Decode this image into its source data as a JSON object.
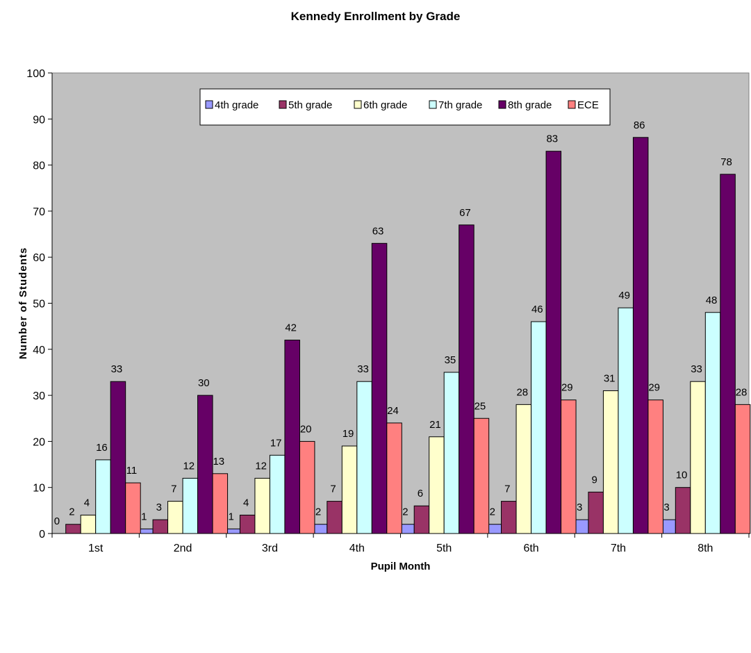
{
  "chart_data": {
    "type": "bar",
    "title": "Kennedy Enrollment by Grade",
    "xlabel": "Pupil Month",
    "ylabel": "Number of Students",
    "ylim": [
      0,
      100
    ],
    "yticks": [
      0,
      10,
      20,
      30,
      40,
      50,
      60,
      70,
      80,
      90,
      100
    ],
    "grid": false,
    "legend_position": "top-center",
    "plot_background": "#c0c0c0",
    "categories": [
      "1st",
      "2nd",
      "3rd",
      "4th",
      "5th",
      "6th",
      "7th",
      "8th"
    ],
    "series": [
      {
        "name": "4th grade",
        "color": "#9999ff",
        "values": [
          0,
          1,
          1,
          2,
          2,
          2,
          3,
          3
        ]
      },
      {
        "name": "5th grade",
        "color": "#993366",
        "values": [
          2,
          3,
          4,
          7,
          6,
          7,
          9,
          10
        ]
      },
      {
        "name": "6th grade",
        "color": "#ffffcc",
        "values": [
          4,
          7,
          12,
          19,
          21,
          28,
          31,
          33
        ]
      },
      {
        "name": "7th grade",
        "color": "#ccffff",
        "values": [
          16,
          12,
          17,
          33,
          35,
          46,
          49,
          48
        ]
      },
      {
        "name": "8th grade",
        "color": "#660066",
        "values": [
          33,
          30,
          42,
          63,
          67,
          83,
          86,
          78
        ]
      },
      {
        "name": "ECE",
        "color": "#ff8080",
        "values": [
          11,
          13,
          20,
          24,
          25,
          29,
          29,
          28
        ]
      }
    ]
  }
}
